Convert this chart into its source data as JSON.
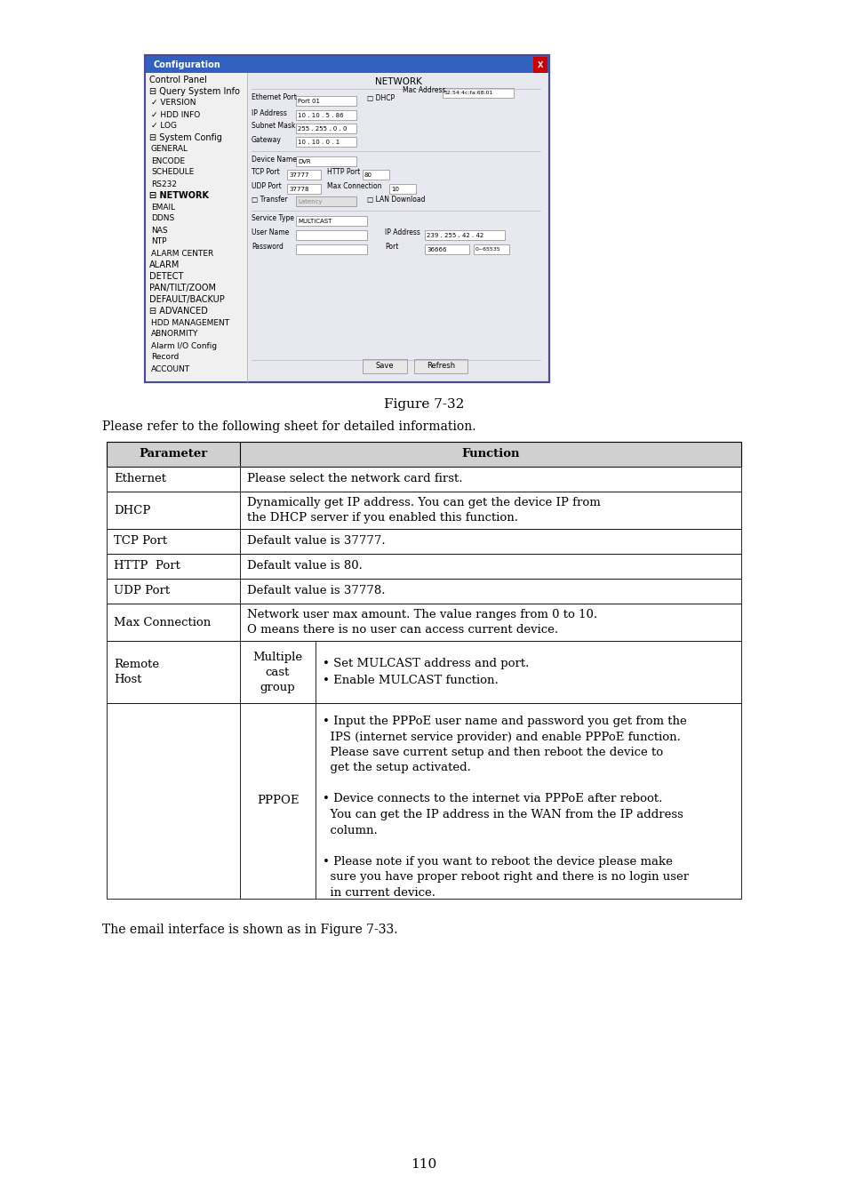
{
  "page_number": "110",
  "figure_caption": "Figure 7-32",
  "intro_text": "Please refer to the following sheet for detailed information.",
  "footer_text": "The email interface is shown as in Figure 7-33.",
  "table_header": [
    "Parameter",
    "Function"
  ],
  "table_rows": [
    {
      "col1": "Ethernet",
      "col2": "Please select the network card first.",
      "sub1": null,
      "sub2": null
    },
    {
      "col1": "DHCP",
      "col2": "Dynamically get IP address. You can get the device IP from\nthe DHCP server if you enabled this function.",
      "sub1": null,
      "sub2": null
    },
    {
      "col1": "TCP Port",
      "col2": "Default value is 37777.",
      "sub1": null,
      "sub2": null
    },
    {
      "col1": "HTTP  Port",
      "col2": "Default value is 80.",
      "sub1": null,
      "sub2": null
    },
    {
      "col1": "UDP Port",
      "col2": "Default value is 37778.",
      "sub1": null,
      "sub2": null
    },
    {
      "col1": "Max Connection",
      "col2": "Network user max amount. The value ranges from 0 to 10.\nO means there is no user can access current device.",
      "sub1": null,
      "sub2": null
    },
    {
      "col1": "Remote\nHost",
      "col2": null,
      "sub1": "Multiple\ncast\ngroup",
      "sub2_lines": [
        "• Set MULCAST address and port.",
        "• Enable MULCAST function."
      ]
    },
    {
      "col1": null,
      "col2": null,
      "sub1": "PPPOE",
      "sub2_lines": [
        "• Input the PPPoE user name and password you get from the\n  IPS (internet service provider) and enable PPPoE function.\n  Please save current setup and then reboot the device to\n  get the setup activated.",
        "• Device connects to the internet via PPPoE after reboot.\n  You can get the IP address in the WAN from the IP address\n  column.",
        "• Please note if you want to reboot the device please make\n  sure you have proper reboot right and there is no login user\n  in current device."
      ]
    }
  ],
  "screenshot_image": true,
  "bg_color": "#ffffff",
  "table_header_bg": "#d0d0d0",
  "table_border_color": "#000000",
  "table_text_color": "#000000",
  "header_text_color": "#000000",
  "body_font_size": 9.5,
  "header_font_size": 9.5
}
